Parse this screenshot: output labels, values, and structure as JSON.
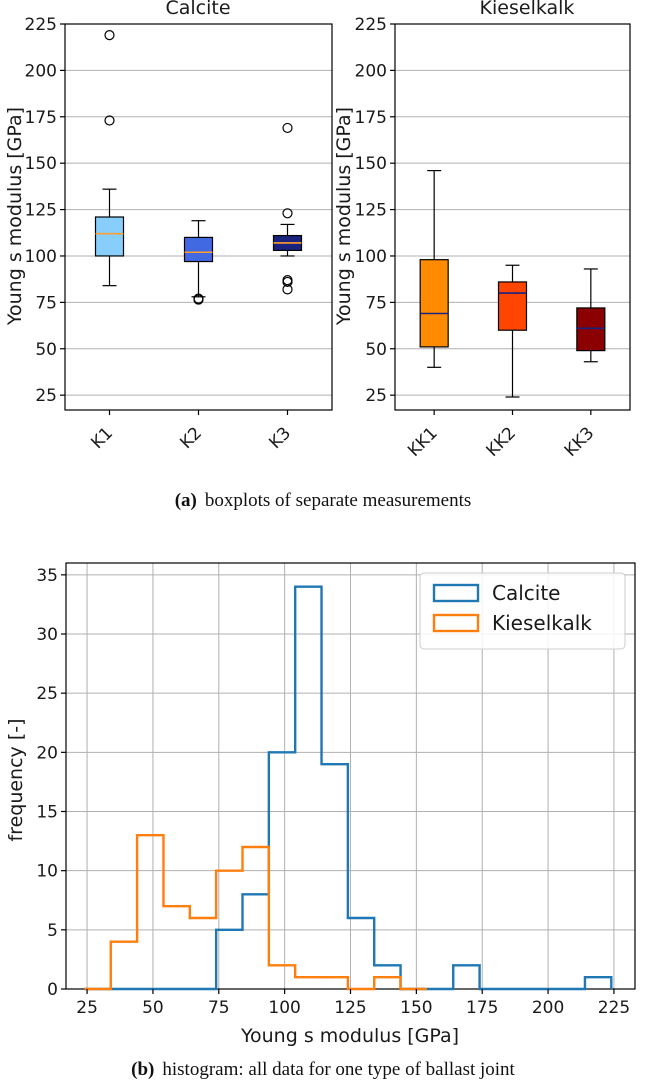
{
  "colors": {
    "calcite_hist": "#1f77b4",
    "kieselkalk_hist": "#ff7f0e",
    "grid": "#b0b0b0"
  },
  "caption_a": {
    "label": "(a)",
    "text": "boxplots of separate measurements"
  },
  "caption_b": {
    "label": "(b)",
    "text": "histogram: all data for one type of ballast joint"
  },
  "chart_data": [
    {
      "type": "box",
      "title": "Calcite",
      "ylabel": "Young s modulus  [GPa]",
      "ylim": [
        17,
        225
      ],
      "yticks": [
        25,
        50,
        75,
        100,
        125,
        150,
        175,
        200,
        225
      ],
      "grid": "horizontal",
      "categories": [
        "K1",
        "K2",
        "K3"
      ],
      "boxes": [
        {
          "label": "K1",
          "color": "#87cefa",
          "median_color": "#ff9d2e",
          "whislo": 84,
          "q1": 100,
          "med": 112,
          "q3": 121,
          "whishi": 136,
          "fliers": [
            173,
            219
          ]
        },
        {
          "label": "K2",
          "color": "#4169e1",
          "median_color": "#ff9d2e",
          "whislo": 78,
          "q1": 97,
          "med": 102,
          "q3": 110,
          "whishi": 119,
          "fliers": [
            77,
            76.5
          ]
        },
        {
          "label": "K3",
          "color": "#1a237e",
          "median_color": "#ff9d2e",
          "whislo": 100,
          "q1": 103,
          "med": 107,
          "q3": 111,
          "whishi": 117,
          "fliers": [
            82,
            86,
            87,
            123,
            169
          ]
        }
      ]
    },
    {
      "type": "box",
      "title": "Kieselkalk",
      "ylabel": "Young s modulus  [GPa]",
      "ylim": [
        17,
        225
      ],
      "yticks": [
        25,
        50,
        75,
        100,
        125,
        150,
        175,
        200,
        225
      ],
      "grid": "horizontal",
      "categories": [
        "KK1",
        "KK2",
        "KK3"
      ],
      "boxes": [
        {
          "label": "KK1",
          "color": "#ff8c00",
          "median_color": "#1a237e",
          "whislo": 40,
          "q1": 51,
          "med": 69,
          "q3": 98,
          "whishi": 146,
          "fliers": []
        },
        {
          "label": "KK2",
          "color": "#ff4500",
          "median_color": "#1a237e",
          "whislo": 24,
          "q1": 60,
          "med": 80,
          "q3": 86,
          "whishi": 95,
          "fliers": []
        },
        {
          "label": "KK3",
          "color": "#8b0000",
          "median_color": "#1a237e",
          "whislo": 43,
          "q1": 49,
          "med": 61,
          "q3": 72,
          "whishi": 93,
          "fliers": []
        }
      ]
    },
    {
      "type": "histogram",
      "histtype": "step",
      "xlabel": "Young s modulus  [GPa]",
      "ylabel": "frequency  [-]",
      "xlim": [
        17,
        233
      ],
      "ylim": [
        0,
        36
      ],
      "xticks": [
        25,
        50,
        75,
        100,
        125,
        150,
        175,
        200,
        225
      ],
      "yticks": [
        0,
        5,
        10,
        15,
        20,
        25,
        30,
        35
      ],
      "grid": "both",
      "legend_position": "top-right",
      "series": [
        {
          "name": "Calcite",
          "color": "#1f77b4",
          "bin_edges": [
            24,
            34,
            44,
            54,
            64,
            74,
            84,
            94,
            104,
            114,
            124,
            134,
            144,
            154,
            164,
            174,
            184,
            194,
            204,
            214,
            224
          ],
          "counts": [
            0,
            0,
            0,
            0,
            0,
            5,
            8,
            20,
            34,
            19,
            6,
            2,
            0,
            0,
            2,
            0,
            0,
            0,
            0,
            1
          ]
        },
        {
          "name": "Kieselkalk",
          "color": "#ff7f0e",
          "bin_edges": [
            24,
            34,
            44,
            54,
            64,
            74,
            84,
            94,
            104,
            114,
            124,
            134,
            144,
            154
          ],
          "counts": [
            0,
            4,
            13,
            7,
            6,
            10,
            12,
            2,
            1,
            1,
            0,
            1,
            0
          ]
        }
      ]
    }
  ]
}
